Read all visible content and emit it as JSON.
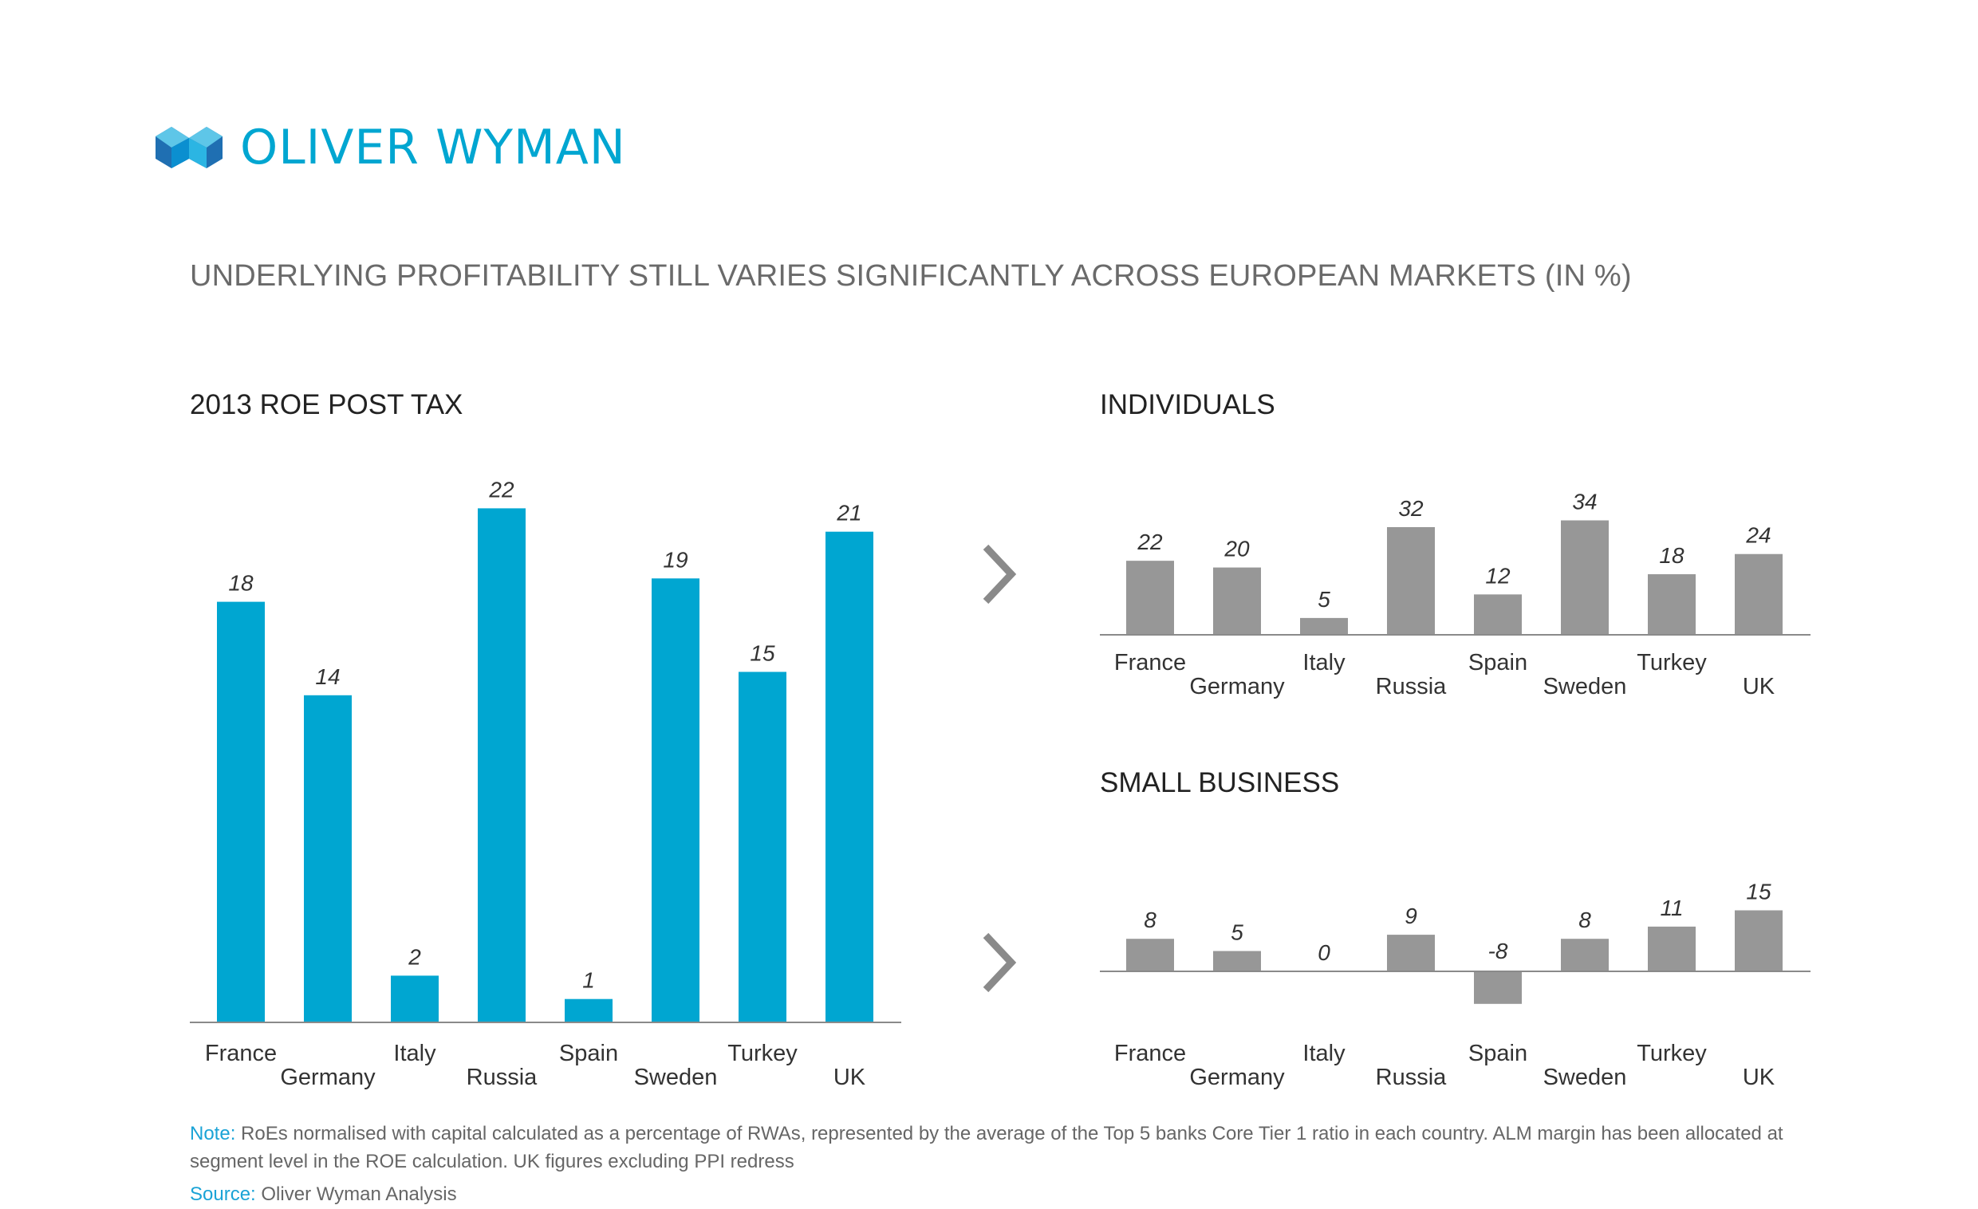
{
  "brand": {
    "name": "OLIVER WYMAN",
    "color": "#00a6d1",
    "icon": "oliver-wyman-logo-icon"
  },
  "title": "UNDERLYING PROFITABILITY STILL VARIES SIGNIFICANTLY ACROSS EUROPEAN MARKETS (IN %)",
  "chart_data": [
    {
      "type": "bar",
      "title": "2013 ROE POST TAX",
      "categories": [
        "France",
        "Germany",
        "Italy",
        "Russia",
        "Spain",
        "Sweden",
        "Turkey",
        "UK"
      ],
      "values": [
        18,
        14,
        2,
        22,
        1,
        19,
        15,
        21
      ],
      "color": "#00a6d1",
      "xlabel": "",
      "ylabel": "",
      "ylim": [
        0,
        22
      ],
      "grid": false,
      "legend": "none"
    },
    {
      "type": "bar",
      "title": "INDIVIDUALS",
      "categories": [
        "France",
        "Germany",
        "Italy",
        "Russia",
        "Spain",
        "Sweden",
        "Turkey",
        "UK"
      ],
      "values": [
        22,
        20,
        5,
        32,
        12,
        34,
        18,
        24
      ],
      "color": "#979797",
      "xlabel": "",
      "ylabel": "",
      "ylim": [
        0,
        34
      ],
      "grid": false,
      "legend": "none"
    },
    {
      "type": "bar",
      "title": "SMALL BUSINESS",
      "categories": [
        "France",
        "Germany",
        "Italy",
        "Russia",
        "Spain",
        "Sweden",
        "Turkey",
        "UK"
      ],
      "values": [
        8,
        5,
        0,
        9,
        -8,
        8,
        11,
        15
      ],
      "color": "#979797",
      "xlabel": "",
      "ylabel": "",
      "ylim": [
        -8,
        15
      ],
      "grid": false,
      "legend": "none"
    }
  ],
  "arrows": {
    "icon": "chevron-right-icon",
    "color": "#8a8a8a"
  },
  "footer": {
    "note_label": "Note:",
    "note_text": " RoEs normalised with capital calculated as a percentage of RWAs, represented by the average of the Top 5 banks Core Tier 1 ratio in each country. ALM margin has been allocated at segment level in the ROE calculation. UK figures excluding PPI redress",
    "source_label": "Source:",
    "source_text": " Oliver Wyman Analysis",
    "accent_color": "#1aa3d6"
  }
}
